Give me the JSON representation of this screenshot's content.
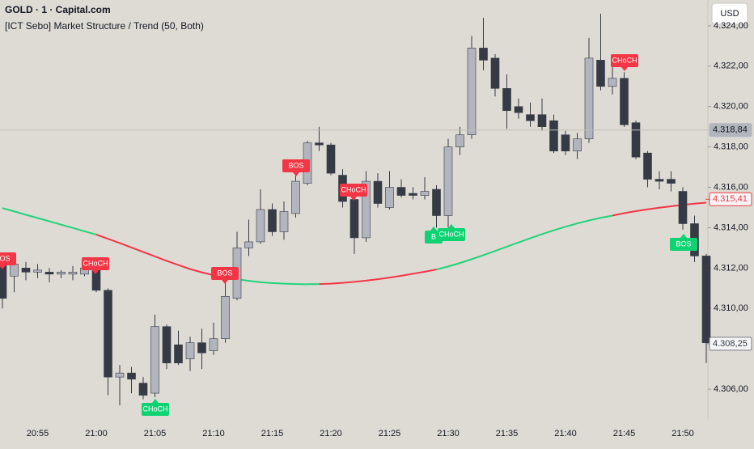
{
  "header": {
    "symbol": "GOLD · 1 · Capital.com",
    "indicator": "[ICT Sebo] Market Structure / Trend (50, Both)",
    "currency": "USD"
  },
  "chart_data": {
    "type": "candlestick",
    "categories": [
      null,
      null,
      null,
      "20:55",
      null,
      null,
      null,
      null,
      "21:00",
      null,
      null,
      null,
      null,
      "21:05",
      null,
      null,
      null,
      null,
      "21:10",
      null,
      null,
      null,
      null,
      "21:15",
      null,
      null,
      null,
      null,
      "21:20",
      null,
      null,
      null,
      null,
      "21:25",
      null,
      null,
      null,
      null,
      "21:30",
      null,
      null,
      null,
      null,
      "21:35",
      null,
      null,
      null,
      null,
      "21:40",
      null,
      null,
      null,
      null,
      "21:45",
      null,
      null,
      null,
      null,
      "21:50",
      null,
      null
    ],
    "open": [
      4312.2,
      4311.6,
      4312.0,
      4311.8,
      4311.8,
      4311.7,
      4311.7,
      4311.7,
      4312.0,
      4310.9,
      4306.6,
      4306.8,
      4306.3,
      4305.8,
      4309.1,
      4308.2,
      4307.5,
      4308.3,
      4307.9,
      4308.5,
      4310.5,
      4313.0,
      4313.3,
      4314.9,
      4313.8,
      4314.7,
      4316.2,
      4318.2,
      4318.1,
      4316.6,
      4315.4,
      4313.5,
      4316.3,
      4315.0,
      4316.0,
      4315.7,
      4315.6,
      4315.9,
      4314.6,
      4318.0,
      4318.6,
      4322.9,
      4322.4,
      4320.9,
      4320.0,
      4319.6,
      4319.6,
      4319.3,
      4318.6,
      4317.8,
      4318.4,
      4322.3,
      4321.0,
      4321.4,
      4319.2,
      4317.7,
      4316.4,
      4316.4,
      4315.8,
      4314.2,
      4312.6
    ],
    "high": [
      4312.5,
      4312.6,
      4312.3,
      4312.2,
      4312.0,
      4311.9,
      4312.1,
      4312.3,
      4312.3,
      4311.0,
      4307.2,
      4307.1,
      4306.6,
      4309.7,
      4309.2,
      4308.9,
      4308.6,
      4309.0,
      4309.3,
      4311.5,
      4313.8,
      4314.4,
      4315.9,
      4315.2,
      4315.3,
      4317.1,
      4318.3,
      4319.0,
      4318.2,
      4316.9,
      4315.6,
      4316.8,
      4316.7,
      4316.8,
      4316.4,
      4316.0,
      4316.5,
      4316.1,
      4318.4,
      4319.0,
      4323.5,
      4324.4,
      4322.6,
      4321.6,
      4320.4,
      4320.2,
      4320.4,
      4319.6,
      4318.8,
      4318.7,
      4323.4,
      4324.6,
      4322.0,
      4321.7,
      4319.3,
      4317.8,
      4316.8,
      4316.8,
      4316.0,
      4314.6,
      4312.7
    ],
    "low": [
      4310.0,
      4310.8,
      4311.4,
      4311.5,
      4311.3,
      4311.5,
      4311.4,
      4311.6,
      4310.8,
      4305.7,
      4305.2,
      4305.8,
      4305.5,
      4305.6,
      4307.0,
      4307.2,
      4306.9,
      4307.0,
      4307.7,
      4308.3,
      4310.4,
      4312.6,
      4313.2,
      4313.6,
      4313.4,
      4314.5,
      4316.1,
      4317.8,
      4316.6,
      4315.0,
      4312.7,
      4313.3,
      4315.0,
      4314.9,
      4315.5,
      4315.4,
      4315.4,
      4314.0,
      4314.0,
      4317.6,
      4318.4,
      4321.8,
      4320.5,
      4318.9,
      4319.4,
      4319.0,
      4318.8,
      4317.7,
      4317.6,
      4317.4,
      4318.2,
      4320.8,
      4320.6,
      4319.0,
      4317.4,
      4316.0,
      4315.9,
      4315.8,
      4313.9,
      4312.3,
      4307.3
    ],
    "close": [
      4310.5,
      4312.2,
      4311.8,
      4311.9,
      4311.7,
      4311.8,
      4311.8,
      4312.0,
      4310.9,
      4306.6,
      4306.8,
      4306.5,
      4305.7,
      4309.1,
      4307.3,
      4307.3,
      4308.3,
      4307.8,
      4308.5,
      4310.6,
      4313.0,
      4313.3,
      4314.9,
      4313.8,
      4314.8,
      4316.3,
      4318.2,
      4318.1,
      4316.7,
      4315.3,
      4313.5,
      4316.3,
      4315.2,
      4316.0,
      4315.6,
      4315.6,
      4315.8,
      4314.6,
      4318.0,
      4318.6,
      4322.9,
      4322.3,
      4320.9,
      4319.8,
      4319.7,
      4319.3,
      4319.0,
      4317.8,
      4317.8,
      4318.4,
      4322.4,
      4321.0,
      4321.4,
      4319.1,
      4317.5,
      4316.4,
      4316.3,
      4316.2,
      4314.2,
      4312.6,
      4308.3
    ],
    "up_color": "#b2b5be",
    "down_color": "#363a45",
    "series": [
      {
        "color": "#22d37a",
        "values": [
          4314.97,
          4314.81,
          4314.64,
          4314.48,
          4314.32,
          4314.15,
          4313.99,
          4313.82,
          4313.66,
          null,
          null,
          null,
          null,
          null,
          null,
          null,
          null,
          null,
          4311.65,
          4311.55,
          4311.45,
          4311.37,
          4311.3,
          4311.26,
          4311.23,
          4311.21,
          4311.2,
          4311.21,
          null,
          null,
          null,
          null,
          null,
          null,
          null,
          null,
          null,
          4311.93,
          4312.08,
          4312.25,
          4312.44,
          4312.64,
          4312.85,
          4313.06,
          4313.27,
          4313.48,
          4313.68,
          4313.87,
          4314.05,
          4314.21,
          4314.36,
          4314.49,
          4314.6,
          null,
          null,
          null,
          null,
          null,
          null,
          null,
          null
        ]
      },
      {
        "color": "#f23645",
        "values": [
          null,
          null,
          null,
          null,
          null,
          null,
          null,
          null,
          4313.66,
          4313.45,
          4313.24,
          4313.02,
          4312.8,
          4312.58,
          4312.36,
          4312.15,
          4311.95,
          4311.79,
          4311.65,
          null,
          null,
          null,
          null,
          null,
          null,
          null,
          null,
          4311.21,
          4311.23,
          4311.27,
          4311.32,
          4311.38,
          4311.45,
          4311.53,
          4311.62,
          4311.72,
          4311.82,
          4311.93,
          null,
          null,
          null,
          null,
          null,
          null,
          null,
          null,
          null,
          null,
          null,
          null,
          null,
          null,
          4314.6,
          4314.72,
          4314.82,
          4314.91,
          4314.99,
          4315.06,
          4315.13,
          4315.19,
          4315.24
        ]
      }
    ],
    "ylim": [
      4304.44,
      4325.28
    ],
    "yticks": [
      {
        "value": 4306,
        "label": "4.306,00"
      },
      {
        "value": 4310,
        "label": "4.310,00"
      },
      {
        "value": 4312,
        "label": "4.312,00"
      },
      {
        "value": 4314,
        "label": "4.314,00"
      },
      {
        "value": 4316,
        "label": "4.316,00"
      },
      {
        "value": 4318,
        "label": "4.318,00"
      },
      {
        "value": 4320,
        "label": "4.320,00"
      },
      {
        "value": 4322,
        "label": "4.322,00"
      },
      {
        "value": 4324,
        "label": "4.324,00"
      }
    ],
    "price_markers": [
      {
        "value": 4318.84,
        "label": "4.318,84"
      },
      {
        "value": 4315.41,
        "label": "4.315,41"
      },
      {
        "value": 4308.25,
        "label": "4.308,25"
      }
    ],
    "annotations": [
      "BOS",
      "CHoCH",
      "CHoCH",
      "BOS",
      "BOS",
      "CHoCH",
      "B",
      "CHoCH",
      "CHoCH",
      "BOS"
    ]
  }
}
